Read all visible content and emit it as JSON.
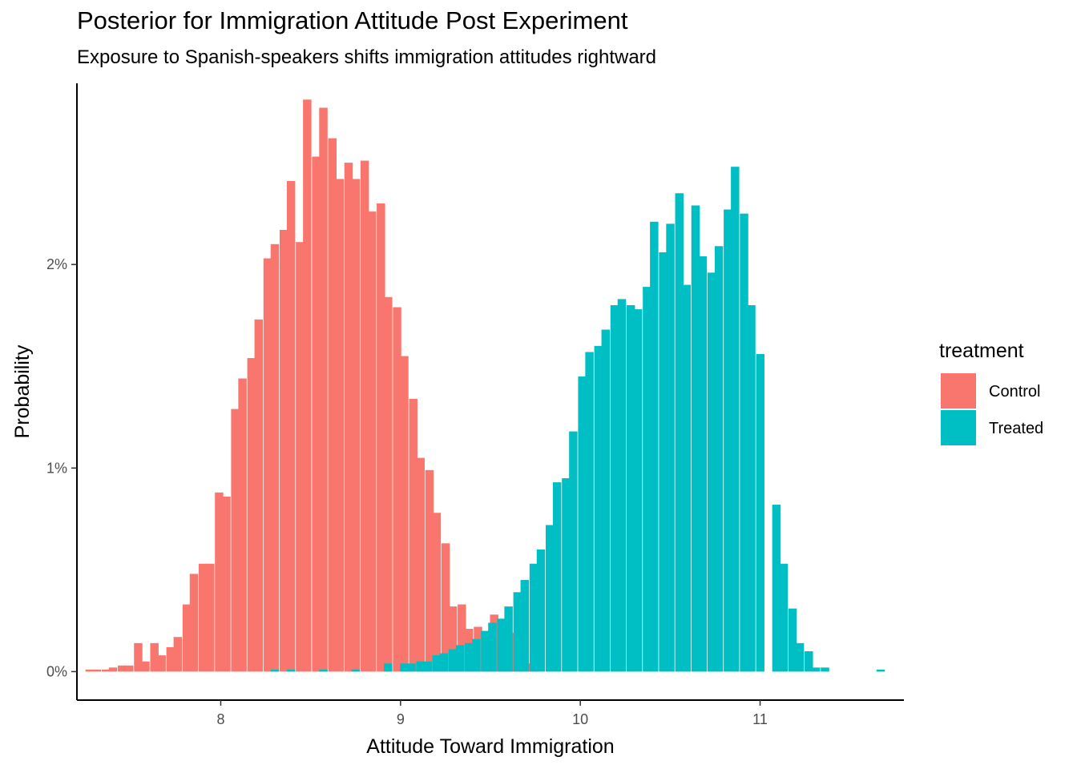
{
  "chart_data": {
    "type": "bar",
    "subtype": "histogram",
    "title": "Posterior for Immigration Attitude Post Experiment",
    "subtitle": "Exposure to Spanish-speakers shifts immigration attitudes rightward",
    "xlabel": "Attitude Toward Immigration",
    "ylabel": "Probability",
    "x_ticks": [
      8,
      9,
      10,
      11
    ],
    "y_ticks": [
      0,
      0.01,
      0.02
    ],
    "y_tick_labels": [
      "0%",
      "1%",
      "2%"
    ],
    "xlim": [
      7.2,
      11.8
    ],
    "ylim": [
      -0.0014,
      0.0289
    ],
    "legend": {
      "title": "treatment",
      "position": "right"
    },
    "grid": false,
    "bin_width": 0.0449,
    "series": [
      {
        "name": "Control",
        "color": "#F8766D",
        "x": [
          7.27,
          7.31,
          7.36,
          7.4,
          7.45,
          7.49,
          7.54,
          7.58,
          7.63,
          7.67,
          7.72,
          7.76,
          7.81,
          7.85,
          7.9,
          7.94,
          7.99,
          8.03,
          8.08,
          8.12,
          8.17,
          8.21,
          8.26,
          8.3,
          8.35,
          8.39,
          8.44,
          8.48,
          8.53,
          8.57,
          8.62,
          8.66,
          8.71,
          8.75,
          8.8,
          8.84,
          8.89,
          8.93,
          8.98,
          9.02,
          9.07,
          9.11,
          9.16,
          9.2,
          9.25,
          9.29,
          9.34,
          9.38,
          9.43,
          9.47,
          9.52,
          9.56,
          9.61,
          9.65,
          9.7,
          9.74
        ],
        "values": [
          0.0001,
          0.0001,
          0.0001,
          0.0002,
          0.0003,
          0.0003,
          0.0014,
          0.0005,
          0.0014,
          0.0008,
          0.0012,
          0.0017,
          0.0033,
          0.0048,
          0.0053,
          0.0053,
          0.0088,
          0.0086,
          0.0129,
          0.0144,
          0.0154,
          0.0173,
          0.0203,
          0.021,
          0.0217,
          0.0241,
          0.0211,
          0.0281,
          0.0253,
          0.0277,
          0.0262,
          0.0242,
          0.025,
          0.0242,
          0.0251,
          0.0226,
          0.023,
          0.0184,
          0.0179,
          0.0155,
          0.0134,
          0.0105,
          0.0099,
          0.0078,
          0.0063,
          0.0032,
          0.0033,
          0.0021,
          0.0022,
          0.0019,
          0.0028,
          0.0023,
          0.0019,
          0.0007,
          0.0004,
          0.0002
        ]
      },
      {
        "name": "Treated",
        "color": "#00BFC4",
        "x": [
          8.3,
          8.39,
          8.57,
          8.75,
          8.93,
          9.02,
          9.06,
          9.11,
          9.15,
          9.2,
          9.24,
          9.29,
          9.33,
          9.38,
          9.42,
          9.47,
          9.51,
          9.56,
          9.6,
          9.65,
          9.69,
          9.74,
          9.78,
          9.83,
          9.87,
          9.92,
          9.96,
          10.01,
          10.05,
          10.1,
          10.14,
          10.19,
          10.23,
          10.28,
          10.32,
          10.37,
          10.41,
          10.46,
          10.5,
          10.55,
          10.59,
          10.64,
          10.68,
          10.73,
          10.77,
          10.82,
          10.86,
          10.91,
          10.95,
          11.0,
          11.09,
          11.13,
          11.18,
          11.22,
          11.27,
          11.31,
          11.36,
          11.67
        ],
        "values": [
          0.0001,
          0.0001,
          0.0001,
          0.0001,
          0.0004,
          0.0004,
          0.0004,
          0.0005,
          0.0005,
          0.0008,
          0.0009,
          0.0011,
          0.0013,
          0.0014,
          0.0016,
          0.002,
          0.0024,
          0.0026,
          0.0032,
          0.0039,
          0.0045,
          0.0053,
          0.006,
          0.0072,
          0.0093,
          0.0095,
          0.0118,
          0.0145,
          0.0157,
          0.016,
          0.0168,
          0.018,
          0.0183,
          0.018,
          0.0178,
          0.0189,
          0.0221,
          0.0206,
          0.022,
          0.0235,
          0.019,
          0.0229,
          0.0204,
          0.0196,
          0.0209,
          0.0227,
          0.0248,
          0.0225,
          0.018,
          0.0156,
          0.0082,
          0.0053,
          0.0031,
          0.0014,
          0.001,
          0.0002,
          0.0002,
          0.0001
        ]
      }
    ]
  }
}
